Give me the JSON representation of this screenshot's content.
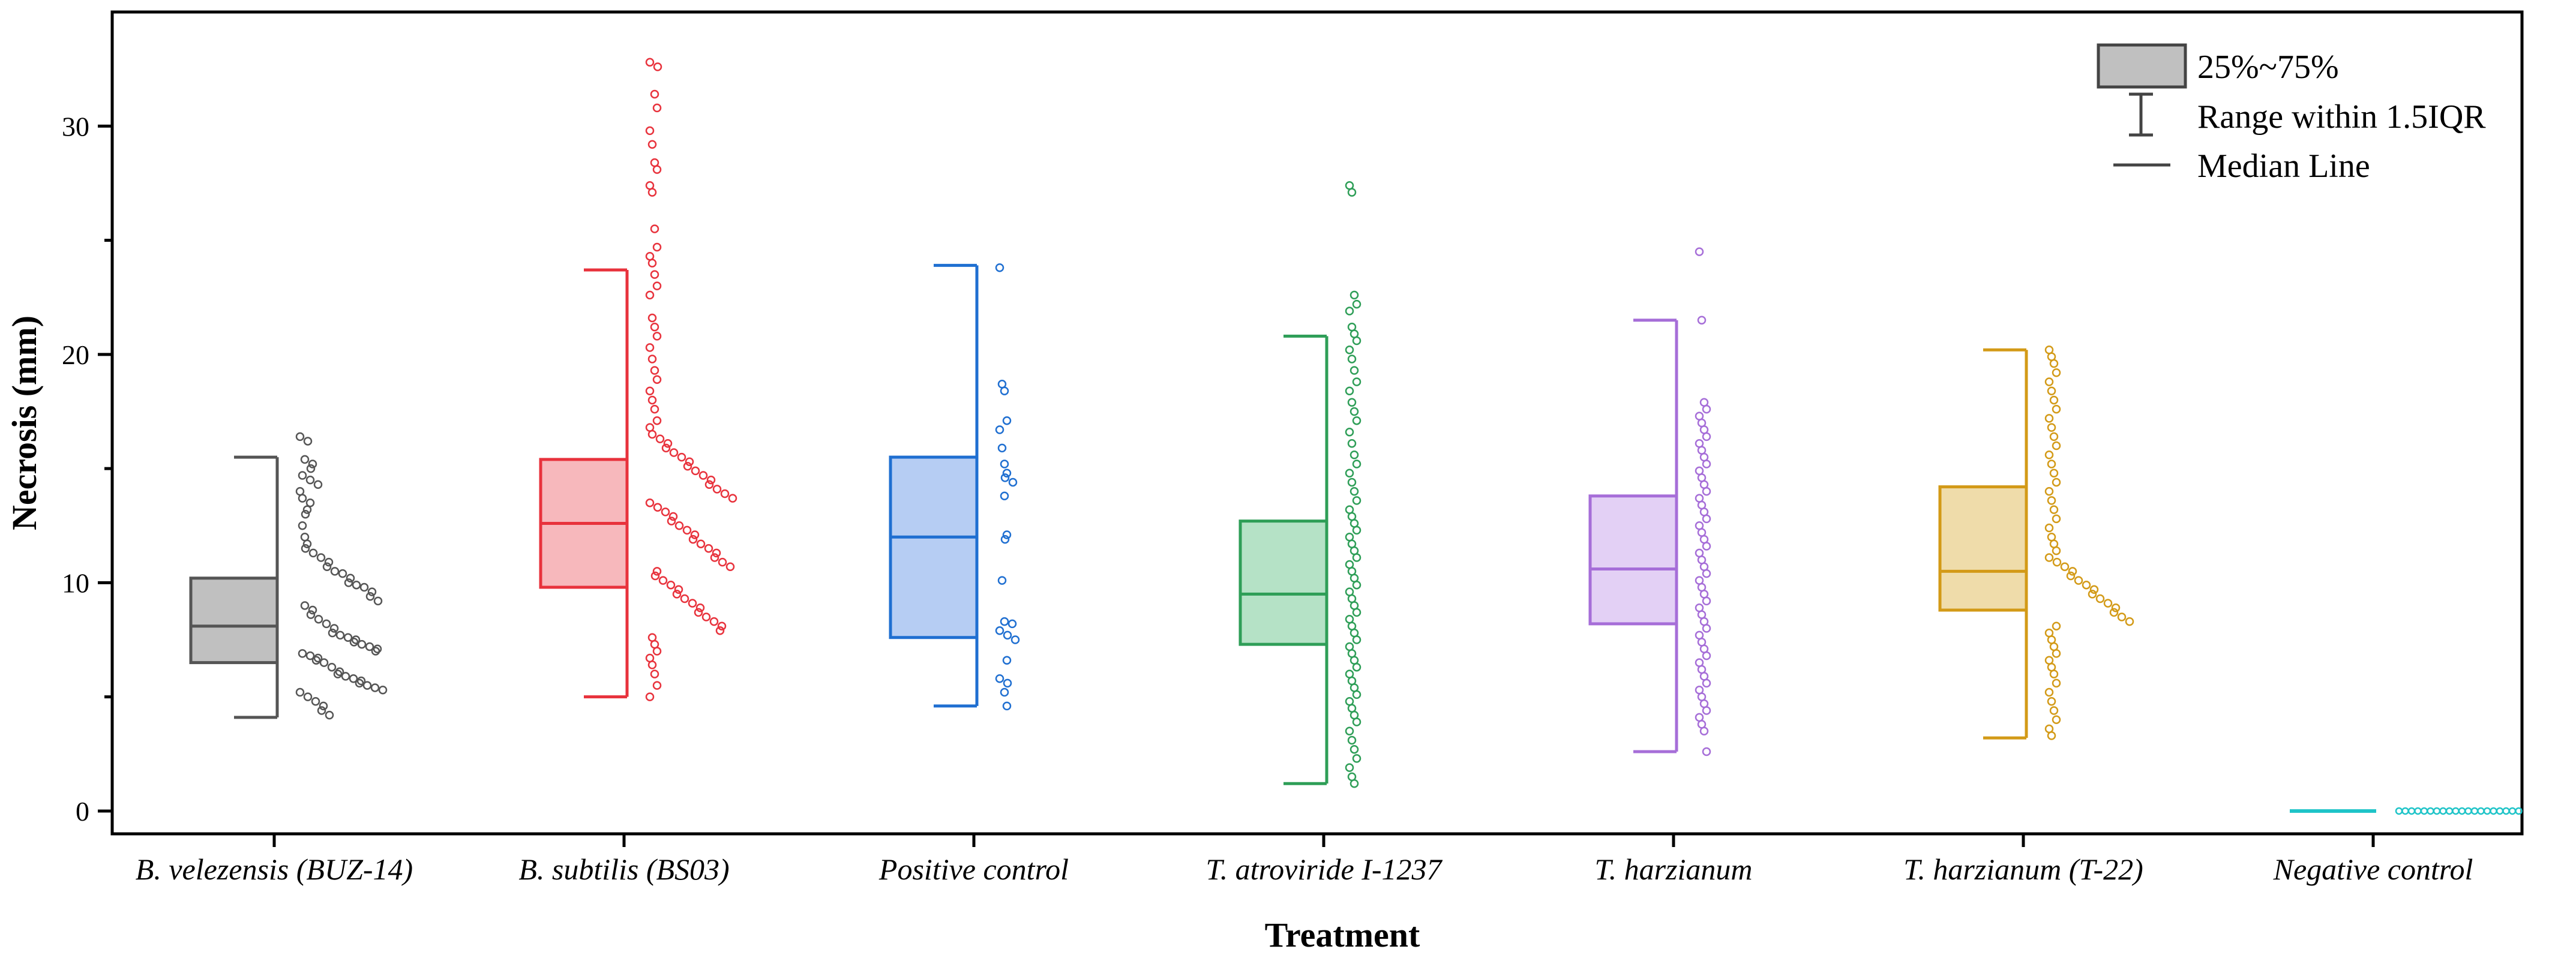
{
  "chart_data": {
    "type": "box",
    "title": "",
    "xlabel": "Treatment",
    "ylabel": "Necrosis (mm)",
    "ylim": [
      -1,
      35
    ],
    "yticks": [
      0,
      10,
      20,
      30
    ],
    "grid": false,
    "legend": {
      "placement": "top-right",
      "items": [
        "25%~75%",
        "Range within 1.5IQR",
        "Median Line"
      ]
    },
    "series": [
      {
        "name": "B. velezensis (BUZ-14)",
        "color": "#555555",
        "fill": "#c0c0c0",
        "whisker_low": 4.1,
        "q1": 6.5,
        "median": 8.1,
        "q3": 10.2,
        "whisker_high": 15.5,
        "points": [
          16.4,
          16.2,
          15.4,
          15.2,
          15.0,
          14.7,
          14.5,
          14.3,
          14.0,
          13.7,
          13.5,
          13.2,
          13.0,
          12.5,
          12.0,
          11.7,
          11.5,
          11.3,
          11.1,
          10.9,
          10.7,
          10.5,
          10.4,
          10.2,
          10.0,
          9.9,
          9.8,
          9.6,
          9.4,
          9.2,
          9.0,
          8.8,
          8.6,
          8.4,
          8.2,
          8.0,
          7.8,
          7.7,
          7.6,
          7.5,
          7.4,
          7.3,
          7.2,
          7.1,
          7.0,
          6.9,
          6.8,
          6.7,
          6.6,
          6.5,
          6.3,
          6.1,
          6.0,
          5.9,
          5.8,
          5.7,
          5.6,
          5.5,
          5.4,
          5.3,
          5.2,
          5.0,
          4.8,
          4.6,
          4.4,
          4.2
        ]
      },
      {
        "name": "B. subtilis (BS03)",
        "color": "#e8323c",
        "fill": "#f7b8bc",
        "whisker_low": 5.0,
        "q1": 9.8,
        "median": 12.6,
        "q3": 15.4,
        "whisker_high": 23.7,
        "points": [
          32.8,
          32.6,
          31.4,
          30.8,
          29.8,
          29.2,
          28.4,
          28.1,
          27.4,
          27.1,
          25.5,
          24.7,
          24.3,
          24.0,
          23.5,
          23.0,
          22.6,
          21.6,
          21.2,
          20.8,
          20.3,
          19.8,
          19.3,
          18.9,
          18.4,
          18.0,
          17.6,
          17.1,
          16.8,
          16.5,
          16.3,
          16.1,
          15.9,
          15.7,
          15.5,
          15.3,
          15.1,
          14.9,
          14.7,
          14.5,
          14.3,
          14.1,
          13.9,
          13.7,
          13.5,
          13.3,
          13.1,
          12.9,
          12.7,
          12.5,
          12.3,
          12.1,
          11.9,
          11.7,
          11.5,
          11.3,
          11.1,
          10.9,
          10.7,
          10.5,
          10.3,
          10.1,
          9.9,
          9.7,
          9.5,
          9.3,
          9.1,
          8.9,
          8.7,
          8.5,
          8.3,
          8.1,
          7.9,
          7.6,
          7.3,
          7.0,
          6.7,
          6.4,
          6.0,
          5.5,
          5.0
        ]
      },
      {
        "name": "Positive control",
        "color": "#1f6fd1",
        "fill": "#b6cdf3",
        "whisker_low": 4.6,
        "q1": 7.6,
        "median": 12.0,
        "q3": 15.5,
        "whisker_high": 23.9,
        "points": [
          23.8,
          18.7,
          18.4,
          17.1,
          16.7,
          15.9,
          15.2,
          14.8,
          14.6,
          14.4,
          13.8,
          12.1,
          11.9,
          10.1,
          8.3,
          8.2,
          7.9,
          7.7,
          7.5,
          6.6,
          5.8,
          5.6,
          5.2,
          4.6
        ]
      },
      {
        "name": "T. atroviride I-1237",
        "color": "#2e9e57",
        "fill": "#b5e2c6",
        "whisker_low": 1.2,
        "q1": 7.3,
        "median": 9.5,
        "q3": 12.7,
        "whisker_high": 20.8,
        "points": [
          27.4,
          27.1,
          22.6,
          22.2,
          21.9,
          21.2,
          20.9,
          20.6,
          20.2,
          19.8,
          19.3,
          18.8,
          18.4,
          17.9,
          17.5,
          17.1,
          16.6,
          16.1,
          15.6,
          15.2,
          14.8,
          14.4,
          14.0,
          13.6,
          13.2,
          12.9,
          12.6,
          12.3,
          12.0,
          11.7,
          11.4,
          11.1,
          10.8,
          10.5,
          10.2,
          9.9,
          9.6,
          9.3,
          9.0,
          8.7,
          8.4,
          8.1,
          7.8,
          7.5,
          7.2,
          6.9,
          6.6,
          6.3,
          6.0,
          5.7,
          5.4,
          5.1,
          4.8,
          4.5,
          4.2,
          3.9,
          3.5,
          3.1,
          2.7,
          2.3,
          1.9,
          1.5,
          1.2
        ]
      },
      {
        "name": "T. harzianum",
        "color": "#a66ed8",
        "fill": "#e3d0f5",
        "whisker_low": 2.6,
        "q1": 8.2,
        "median": 10.6,
        "q3": 13.8,
        "whisker_high": 21.5,
        "points": [
          24.5,
          21.5,
          17.9,
          17.6,
          17.3,
          17.0,
          16.7,
          16.4,
          16.1,
          15.8,
          15.5,
          15.2,
          14.9,
          14.6,
          14.3,
          14.0,
          13.7,
          13.4,
          13.1,
          12.8,
          12.5,
          12.2,
          11.9,
          11.6,
          11.3,
          11.0,
          10.7,
          10.4,
          10.1,
          9.8,
          9.5,
          9.2,
          8.9,
          8.6,
          8.3,
          8.0,
          7.7,
          7.4,
          7.1,
          6.8,
          6.5,
          6.2,
          5.9,
          5.6,
          5.3,
          5.0,
          4.7,
          4.4,
          4.1,
          3.8,
          3.5,
          2.6
        ]
      },
      {
        "name": "T. harzianum (T-22)",
        "color": "#d39a17",
        "fill": "#efdcaa",
        "whisker_low": 3.2,
        "q1": 8.8,
        "median": 10.5,
        "q3": 14.2,
        "whisker_high": 20.2,
        "points": [
          20.2,
          19.9,
          19.6,
          19.2,
          18.8,
          18.4,
          18.0,
          17.6,
          17.2,
          16.8,
          16.4,
          16.0,
          15.6,
          15.2,
          14.8,
          14.4,
          14.0,
          13.6,
          13.2,
          12.8,
          12.4,
          12.0,
          11.7,
          11.4,
          11.1,
          10.9,
          10.7,
          10.5,
          10.3,
          10.1,
          9.9,
          9.7,
          9.5,
          9.3,
          9.1,
          8.9,
          8.7,
          8.5,
          8.3,
          8.1,
          7.8,
          7.5,
          7.2,
          6.9,
          6.6,
          6.3,
          6.0,
          5.6,
          5.2,
          4.8,
          4.4,
          4.0,
          3.6,
          3.3
        ]
      },
      {
        "name": "Negative control",
        "color": "#1fc4c8",
        "fill": "#a9ecee",
        "whisker_low": 0,
        "q1": 0,
        "median": 0,
        "q3": 0,
        "whisker_high": 0,
        "points": [
          0,
          0,
          0,
          0,
          0,
          0,
          0,
          0,
          0,
          0,
          0,
          0,
          0,
          0,
          0,
          0,
          0,
          0,
          0,
          0
        ]
      }
    ]
  }
}
